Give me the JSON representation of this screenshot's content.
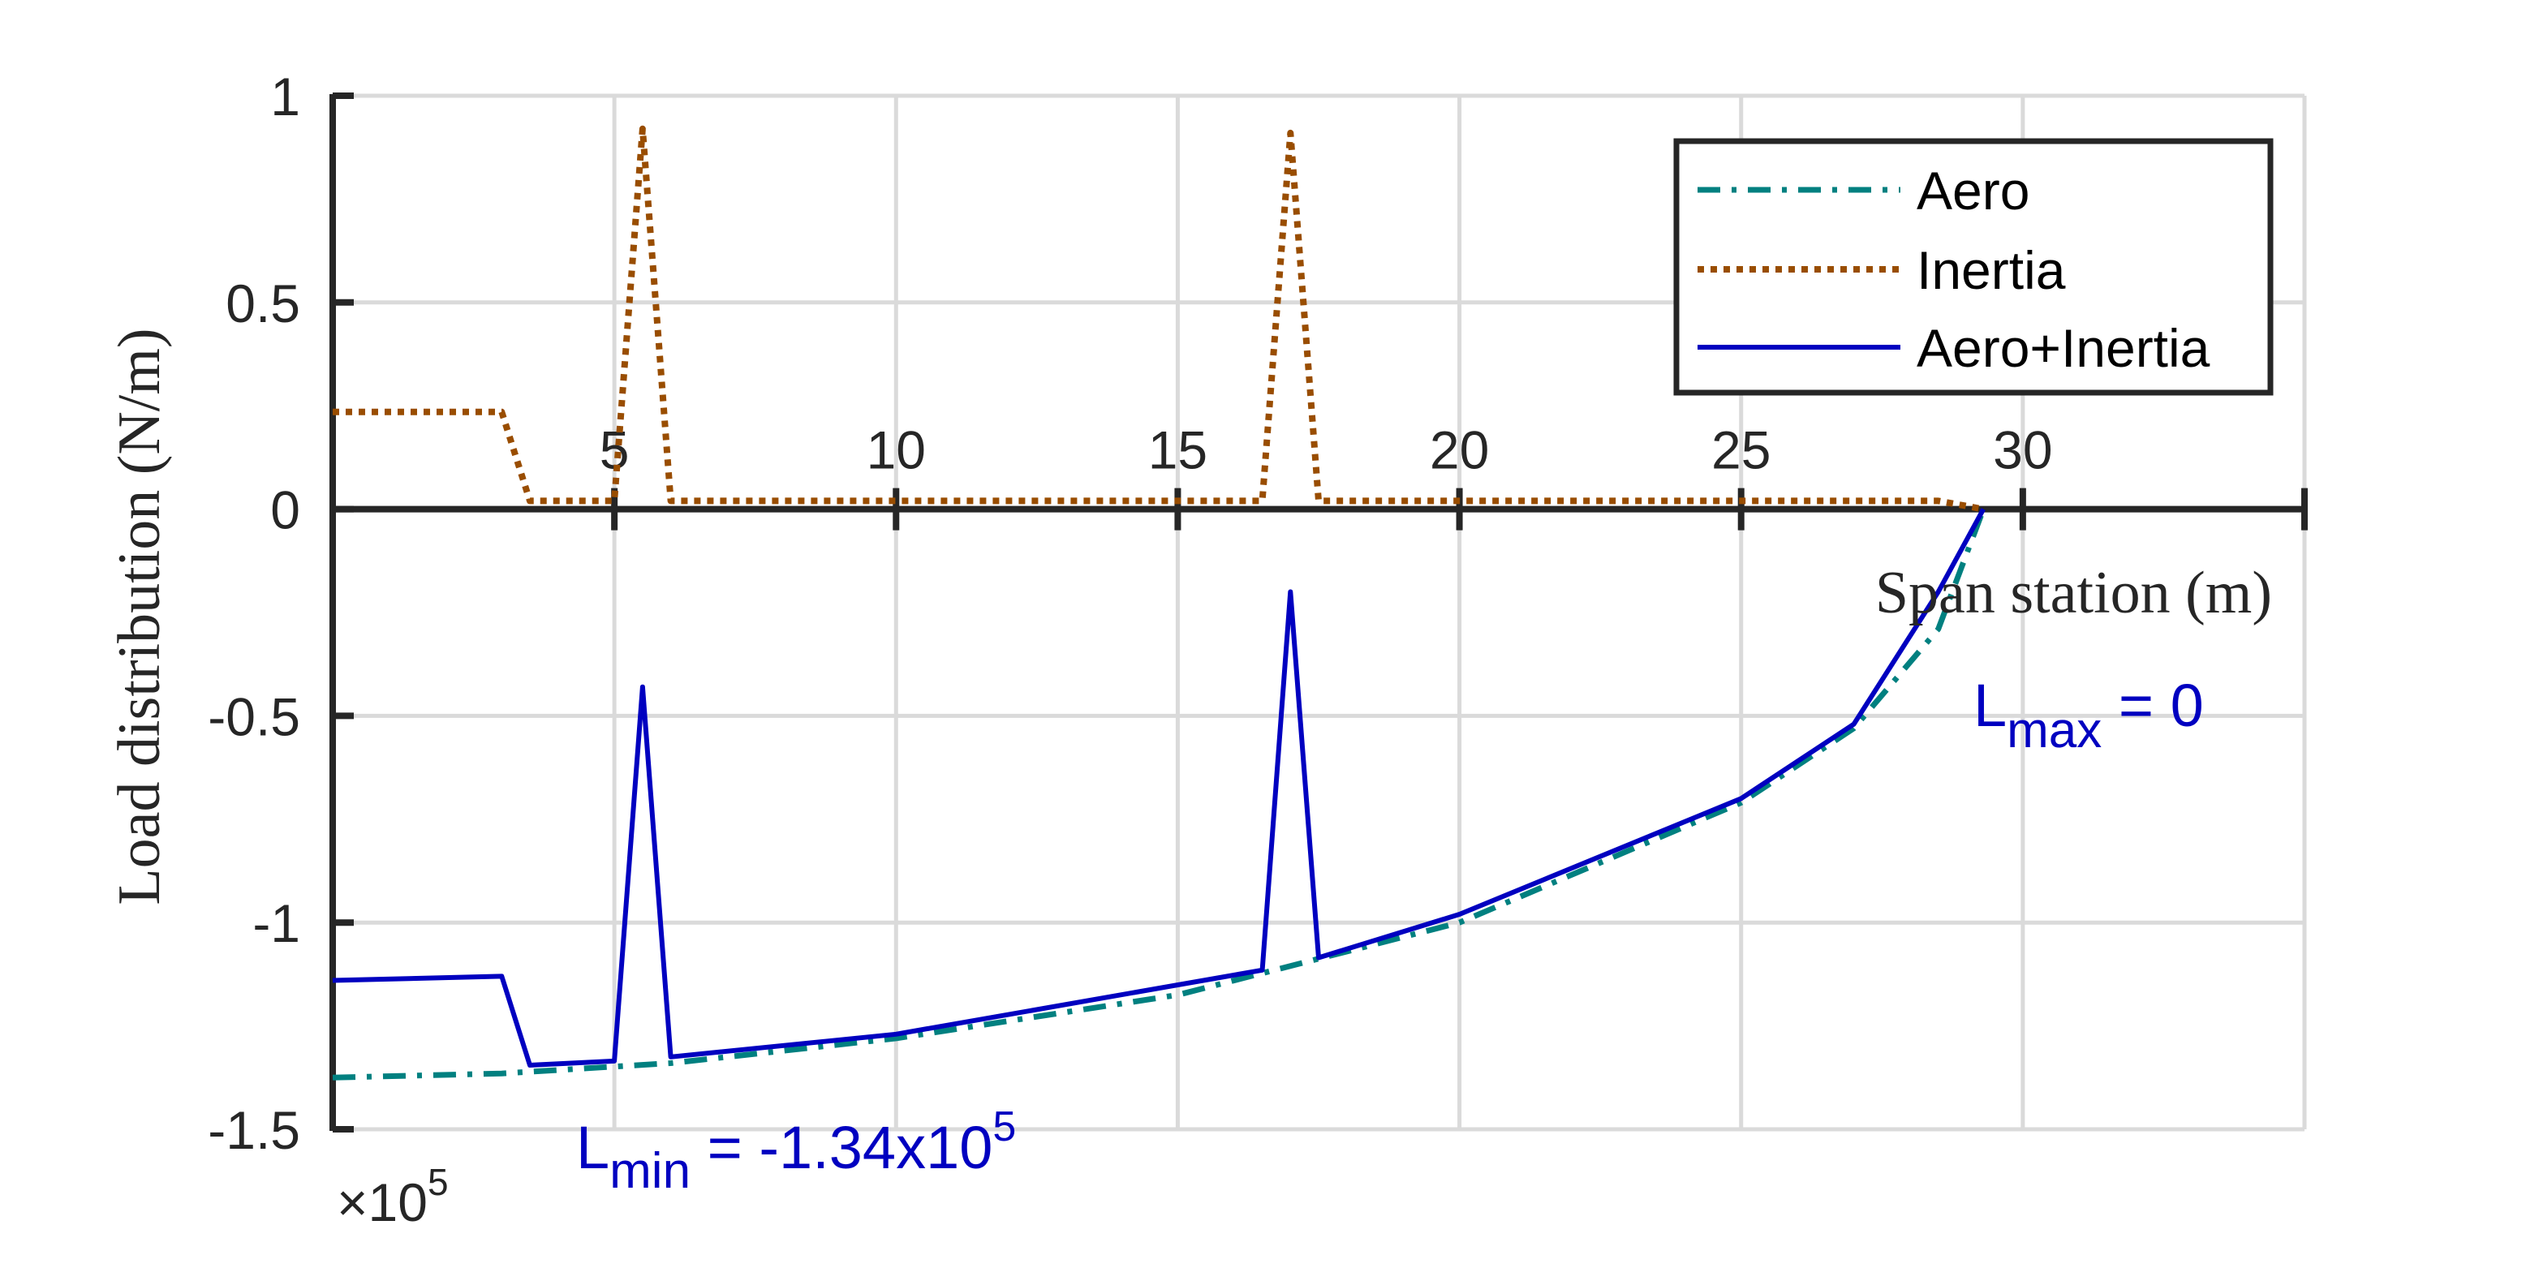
{
  "chart_data": {
    "type": "line",
    "title": "",
    "xlabel": "Span station (m)",
    "ylabel": "Load distribution (N/m)",
    "xlim": [
      0,
      35
    ],
    "ylim": [
      -1.5,
      1
    ],
    "y_scale_multiplier": "×10",
    "y_scale_exponent": "5",
    "grid": true,
    "legend_position": "top-right",
    "x_ticks": [
      "5",
      "10",
      "15",
      "20",
      "25",
      "30"
    ],
    "x_tick_values": [
      5,
      10,
      15,
      20,
      25,
      30
    ],
    "y_ticks": [
      "1",
      "0.5",
      "0",
      "-0.5",
      "-1",
      "-1.5"
    ],
    "y_tick_values": [
      1,
      0.5,
      0,
      -0.5,
      -1,
      -1.5
    ],
    "series": [
      {
        "name": "Aero",
        "color": "#008080",
        "style": "dash-dot",
        "x": [
          0,
          3,
          6,
          10,
          15,
          20,
          25,
          27,
          28.5,
          29.3
        ],
        "y": [
          -1.375,
          -1.365,
          -1.34,
          -1.28,
          -1.175,
          -1.0,
          -0.71,
          -0.53,
          -0.29,
          0
        ]
      },
      {
        "name": "Inertia",
        "color": "#994d00",
        "style": "dotted",
        "x": [
          0,
          3,
          3.5,
          5,
          5.5,
          6,
          16.5,
          17,
          17.5,
          28.5,
          29.3
        ],
        "y": [
          0.235,
          0.235,
          0.02,
          0.02,
          0.92,
          0.02,
          0.02,
          0.91,
          0.02,
          0.02,
          0
        ]
      },
      {
        "name": "Aero+Inertia",
        "color": "#0000c0",
        "style": "solid",
        "x": [
          0,
          3,
          3.5,
          5,
          5.5,
          6,
          10,
          16.5,
          17,
          17.5,
          20,
          25,
          27,
          28.5,
          29.3
        ],
        "y": [
          -1.14,
          -1.13,
          -1.345,
          -1.335,
          -0.43,
          -1.325,
          -1.27,
          -1.115,
          -0.2,
          -1.085,
          -0.98,
          -0.7,
          -0.52,
          -0.2,
          0
        ]
      }
    ],
    "annotations": {
      "lmin_main": "L",
      "lmin_sub": "min",
      "lmin_value": " = -1.34x10",
      "lmin_exp": "5",
      "lmax_main": "L",
      "lmax_sub": "max",
      "lmax_value": " = 0"
    }
  }
}
